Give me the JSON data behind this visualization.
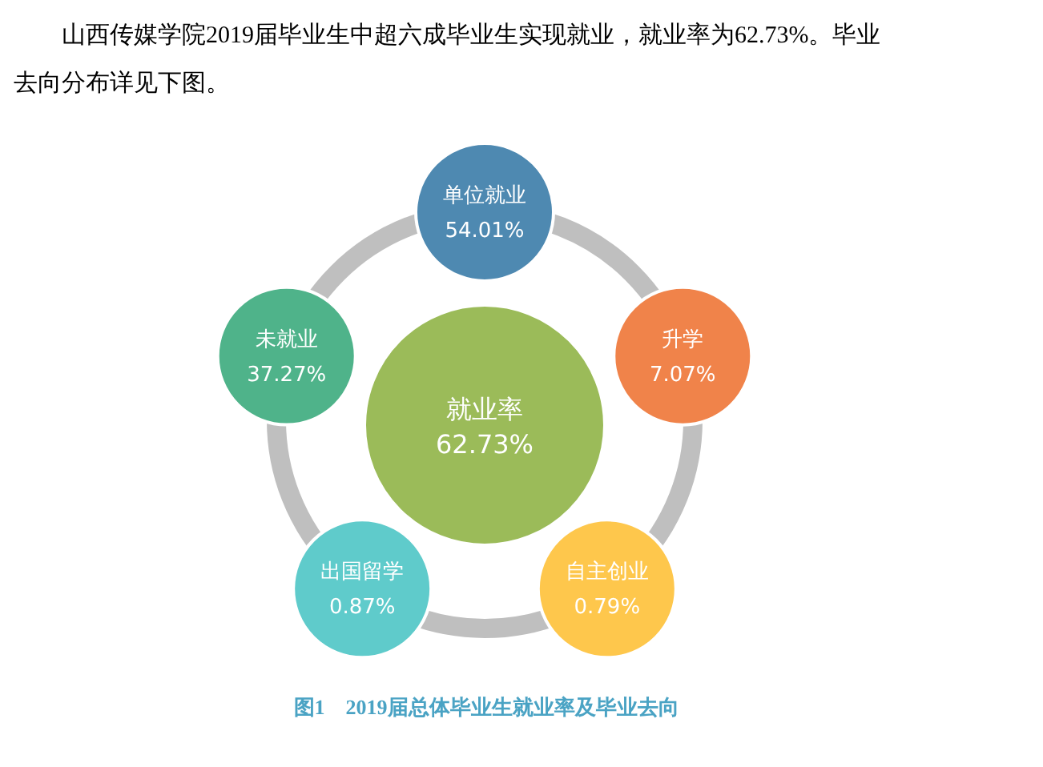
{
  "chart_data": {
    "type": "other",
    "subtitle": "山西传媒学院2019届毕业生中超六成毕业生实现就业，就业率为62.73%。毕业去向分布详见下图。",
    "title": "图1　2019届总体毕业生就业率及毕业去向",
    "categories": [
      "就业率",
      "单位就业",
      "升学",
      "自主创业",
      "出国留学",
      "未就业"
    ],
    "values": [
      62.73,
      54.01,
      7.07,
      0.79,
      0.87,
      37.27
    ],
    "value_labels": [
      "62.73%",
      "54.01%",
      "7.07%",
      "0.79%",
      "0.87%",
      "37.27%"
    ],
    "colors": [
      "#9bbb59",
      "#4e89b1",
      "#f0834a",
      "#fec74c",
      "#5fcbcb",
      "#4fb38a"
    ]
  }
}
